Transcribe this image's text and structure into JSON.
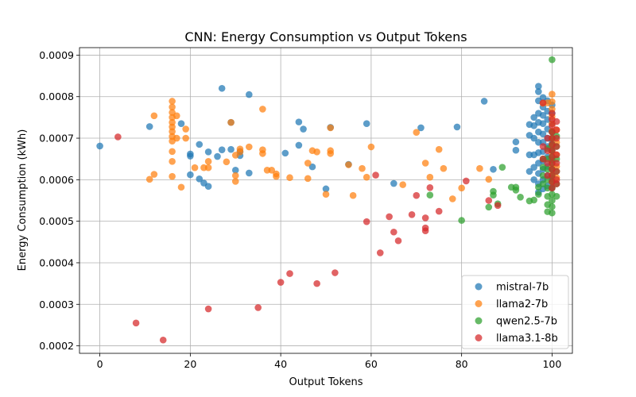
{
  "chart_data": {
    "type": "scatter",
    "title": "CNN: Energy Consumption vs Output Tokens",
    "xlabel": "Output Tokens",
    "ylabel": "Energy Consumption (kWh)",
    "xlim": [
      -4.5,
      104.5
    ],
    "ylim": [
      0.000182,
      0.000918
    ],
    "xticks": [
      0,
      20,
      40,
      60,
      80,
      100
    ],
    "yticks": [
      0.0002,
      0.0003,
      0.0004,
      0.0005,
      0.0006,
      0.0007,
      0.0008,
      0.0009
    ],
    "xtick_labels": [
      "0",
      "20",
      "40",
      "60",
      "80",
      "100"
    ],
    "ytick_labels": [
      "0.0002",
      "0.0003",
      "0.0004",
      "0.0005",
      "0.0006",
      "0.0007",
      "0.0008",
      "0.0009"
    ],
    "grid": true,
    "legend_position": "bottom-right",
    "series": [
      {
        "name": "mistral-7b",
        "color": "#1f77b4",
        "points": [
          [
            0,
            0.000681
          ],
          [
            11,
            0.000728
          ],
          [
            18,
            0.000735
          ],
          [
            20,
            0.000662
          ],
          [
            20,
            0.000657
          ],
          [
            20,
            0.000612
          ],
          [
            22,
            0.000685
          ],
          [
            22,
            0.000602
          ],
          [
            23,
            0.000592
          ],
          [
            24,
            0.000584
          ],
          [
            24,
            0.000667
          ],
          [
            26,
            0.000656
          ],
          [
            27,
            0.00082
          ],
          [
            27,
            0.000672
          ],
          [
            29,
            0.000738
          ],
          [
            29,
            0.000673
          ],
          [
            30,
            0.000623
          ],
          [
            31,
            0.000668
          ],
          [
            31,
            0.000658
          ],
          [
            33,
            0.000805
          ],
          [
            33,
            0.000616
          ],
          [
            41,
            0.000664
          ],
          [
            44,
            0.000739
          ],
          [
            44,
            0.000683
          ],
          [
            45,
            0.000722
          ],
          [
            47,
            0.000631
          ],
          [
            50,
            0.000578
          ],
          [
            51,
            0.000726
          ],
          [
            55,
            0.000637
          ],
          [
            59,
            0.000735
          ],
          [
            65,
            0.000591
          ],
          [
            71,
            0.000725
          ],
          [
            79,
            0.000727
          ],
          [
            85,
            0.000789
          ],
          [
            87,
            0.000625
          ],
          [
            92,
            0.000691
          ],
          [
            92,
            0.000671
          ],
          [
            95,
            0.000733
          ],
          [
            95,
            0.000707
          ],
          [
            95,
            0.00066
          ],
          [
            95,
            0.00062
          ],
          [
            96,
            0.00075
          ],
          [
            96,
            0.00073
          ],
          [
            96,
            0.0007
          ],
          [
            96,
            0.00066
          ],
          [
            96,
            0.00063
          ],
          [
            96,
            0.0006
          ],
          [
            97,
            0.000825
          ],
          [
            97,
            0.000812
          ],
          [
            97,
            0.00079
          ],
          [
            97,
            0.00076
          ],
          [
            97,
            0.000738
          ],
          [
            97,
            0.000715
          ],
          [
            97,
            0.00069
          ],
          [
            97,
            0.000665
          ],
          [
            97,
            0.00064
          ],
          [
            97,
            0.000615
          ],
          [
            97,
            0.00059
          ],
          [
            97,
            0.00057
          ],
          [
            98,
            0.000798
          ],
          [
            98,
            0.000775
          ],
          [
            98,
            0.000755
          ],
          [
            98,
            0.000735
          ],
          [
            98,
            0.00071
          ],
          [
            98,
            0.00069
          ],
          [
            98,
            0.000668
          ],
          [
            98,
            0.000645
          ],
          [
            98,
            0.000625
          ],
          [
            98,
            0.0006
          ],
          [
            98,
            0.000578
          ],
          [
            99,
            0.00079
          ],
          [
            99,
            0.000765
          ],
          [
            99,
            0.000745
          ],
          [
            99,
            0.000722
          ],
          [
            99,
            0.0007
          ],
          [
            99,
            0.00068
          ],
          [
            99,
            0.000655
          ],
          [
            99,
            0.000632
          ],
          [
            99,
            0.00061
          ],
          [
            99,
            0.000585
          ],
          [
            100,
            0.00078
          ],
          [
            100,
            0.00076
          ],
          [
            100,
            0.000735
          ],
          [
            100,
            0.000715
          ],
          [
            100,
            0.000693
          ],
          [
            100,
            0.00067
          ],
          [
            100,
            0.000648
          ],
          [
            100,
            0.000625
          ],
          [
            100,
            0.000603
          ],
          [
            100,
            0.00058
          ]
        ]
      },
      {
        "name": "llama2-7b",
        "color": "#ff7f0e",
        "points": [
          [
            11,
            0.000601
          ],
          [
            12,
            0.000613
          ],
          [
            12,
            0.000754
          ],
          [
            16,
            0.000789
          ],
          [
            16,
            0.000775
          ],
          [
            16,
            0.000762
          ],
          [
            16,
            0.00075
          ],
          [
            16,
            0.000738
          ],
          [
            16,
            0.000727
          ],
          [
            16,
            0.000716
          ],
          [
            16,
            0.000704
          ],
          [
            16,
            0.000693
          ],
          [
            16,
            0.000668
          ],
          [
            16,
            0.000644
          ],
          [
            16,
            0.000608
          ],
          [
            17,
            0.000754
          ],
          [
            17,
            0.0007
          ],
          [
            18,
            0.000582
          ],
          [
            19,
            0.000722
          ],
          [
            19,
            0.0007
          ],
          [
            21,
            0.000629
          ],
          [
            23,
            0.000629
          ],
          [
            24,
            0.000629
          ],
          [
            24,
            0.000644
          ],
          [
            28,
            0.000643
          ],
          [
            29,
            0.000738
          ],
          [
            30,
            0.00061
          ],
          [
            30,
            0.000596
          ],
          [
            30,
            0.000659
          ],
          [
            31,
            0.000674
          ],
          [
            31,
            0.000667
          ],
          [
            33,
            0.000679
          ],
          [
            36,
            0.00077
          ],
          [
            36,
            0.000672
          ],
          [
            36,
            0.000663
          ],
          [
            37,
            0.000623
          ],
          [
            38,
            0.000623
          ],
          [
            39,
            0.000614
          ],
          [
            39,
            0.000608
          ],
          [
            42,
            0.000605
          ],
          [
            46,
            0.00064
          ],
          [
            46,
            0.000603
          ],
          [
            47,
            0.00067
          ],
          [
            48,
            0.000667
          ],
          [
            50,
            0.000565
          ],
          [
            51,
            0.00067
          ],
          [
            51,
            0.000663
          ],
          [
            51,
            0.000725
          ],
          [
            55,
            0.000636
          ],
          [
            56,
            0.000562
          ],
          [
            58,
            0.000627
          ],
          [
            59,
            0.000606
          ],
          [
            60,
            0.000679
          ],
          [
            67,
            0.000588
          ],
          [
            70,
            0.000714
          ],
          [
            72,
            0.00064
          ],
          [
            73,
            0.000606
          ],
          [
            75,
            0.000673
          ],
          [
            76,
            0.000627
          ],
          [
            78,
            0.000554
          ],
          [
            80,
            0.00058
          ],
          [
            84,
            0.000627
          ],
          [
            86,
            0.000601
          ],
          [
            98,
            0.000784
          ],
          [
            99,
            0.000785
          ],
          [
            100,
            0.000806
          ],
          [
            100,
            0.000788
          ],
          [
            100,
            0.00077
          ],
          [
            100,
            0.000752
          ],
          [
            100,
            0.000735
          ],
          [
            100,
            0.000717
          ],
          [
            100,
            0.0007
          ],
          [
            100,
            0.000682
          ],
          [
            100,
            0.000665
          ],
          [
            100,
            0.000648
          ],
          [
            100,
            0.00063
          ],
          [
            100,
            0.000612
          ],
          [
            100,
            0.000595
          ],
          [
            101,
            0.00072
          ],
          [
            101,
            0.00069
          ],
          [
            101,
            0.00066
          ],
          [
            101,
            0.000632
          ],
          [
            101,
            0.000605
          ]
        ]
      },
      {
        "name": "qwen2.5-7b",
        "color": "#2ca02c",
        "points": [
          [
            73,
            0.000563
          ],
          [
            80,
            0.000502
          ],
          [
            86,
            0.000534
          ],
          [
            87,
            0.000563
          ],
          [
            87,
            0.000572
          ],
          [
            88,
            0.000542
          ],
          [
            89,
            0.00063
          ],
          [
            91,
            0.000582
          ],
          [
            92,
            0.000582
          ],
          [
            92,
            0.000575
          ],
          [
            93,
            0.000558
          ],
          [
            95,
            0.000549
          ],
          [
            96,
            0.000551
          ],
          [
            97,
            0.000565
          ],
          [
            97,
            0.000582
          ],
          [
            98,
            0.00059
          ],
          [
            98,
            0.00061
          ],
          [
            98,
            0.00063
          ],
          [
            98,
            0.00065
          ],
          [
            99,
            0.000523
          ],
          [
            99,
            0.00054
          ],
          [
            99,
            0.00056
          ],
          [
            99,
            0.00058
          ],
          [
            99,
            0.0006
          ],
          [
            99,
            0.000625
          ],
          [
            99,
            0.00065
          ],
          [
            99,
            0.000675
          ],
          [
            100,
            0.000889
          ],
          [
            100,
            0.00052
          ],
          [
            100,
            0.000535
          ],
          [
            100,
            0.00055
          ],
          [
            100,
            0.000565
          ],
          [
            100,
            0.00058
          ],
          [
            100,
            0.000595
          ],
          [
            100,
            0.00061
          ],
          [
            100,
            0.000625
          ],
          [
            100,
            0.00064
          ],
          [
            100,
            0.000655
          ],
          [
            100,
            0.00067
          ],
          [
            100,
            0.000685
          ],
          [
            100,
            0.0007
          ],
          [
            100,
            0.000715
          ],
          [
            101,
            0.00056
          ],
          [
            101,
            0.00059
          ],
          [
            101,
            0.00062
          ],
          [
            101,
            0.00065
          ],
          [
            101,
            0.00068
          ],
          [
            101,
            0.000705
          ]
        ]
      },
      {
        "name": "llama3.1-8b",
        "color": "#d62728",
        "points": [
          [
            4,
            0.000703
          ],
          [
            8,
            0.000255
          ],
          [
            14,
            0.000214
          ],
          [
            24,
            0.000289
          ],
          [
            35,
            0.000292
          ],
          [
            40,
            0.000353
          ],
          [
            42,
            0.000374
          ],
          [
            48,
            0.00035
          ],
          [
            52,
            0.000376
          ],
          [
            59,
            0.000499
          ],
          [
            61,
            0.000611
          ],
          [
            62,
            0.000424
          ],
          [
            64,
            0.000511
          ],
          [
            65,
            0.000474
          ],
          [
            66,
            0.000453
          ],
          [
            69,
            0.000516
          ],
          [
            70,
            0.000562
          ],
          [
            72,
            0.000508
          ],
          [
            72,
            0.000484
          ],
          [
            72,
            0.000477
          ],
          [
            73,
            0.000581
          ],
          [
            75,
            0.000524
          ],
          [
            81,
            0.000597
          ],
          [
            86,
            0.00055
          ],
          [
            88,
            0.000538
          ],
          [
            98,
            0.000785
          ],
          [
            98,
            0.00068
          ],
          [
            98,
            0.00065
          ],
          [
            99,
            0.0007
          ],
          [
            99,
            0.00067
          ],
          [
            99,
            0.00064
          ],
          [
            99,
            0.00061
          ],
          [
            100,
            0.00076
          ],
          [
            100,
            0.000745
          ],
          [
            100,
            0.00073
          ],
          [
            100,
            0.000715
          ],
          [
            100,
            0.0007
          ],
          [
            100,
            0.000685
          ],
          [
            100,
            0.00067
          ],
          [
            100,
            0.000655
          ],
          [
            100,
            0.00064
          ],
          [
            100,
            0.000625
          ],
          [
            100,
            0.00061
          ],
          [
            100,
            0.000595
          ],
          [
            100,
            0.00058
          ],
          [
            101,
            0.00072
          ],
          [
            101,
            0.0007
          ],
          [
            101,
            0.00068
          ],
          [
            101,
            0.00066
          ],
          [
            101,
            0.00064
          ],
          [
            101,
            0.00062
          ],
          [
            101,
            0.0006
          ],
          [
            101,
            0.00059
          ],
          [
            101,
            0.00074
          ]
        ]
      }
    ]
  }
}
